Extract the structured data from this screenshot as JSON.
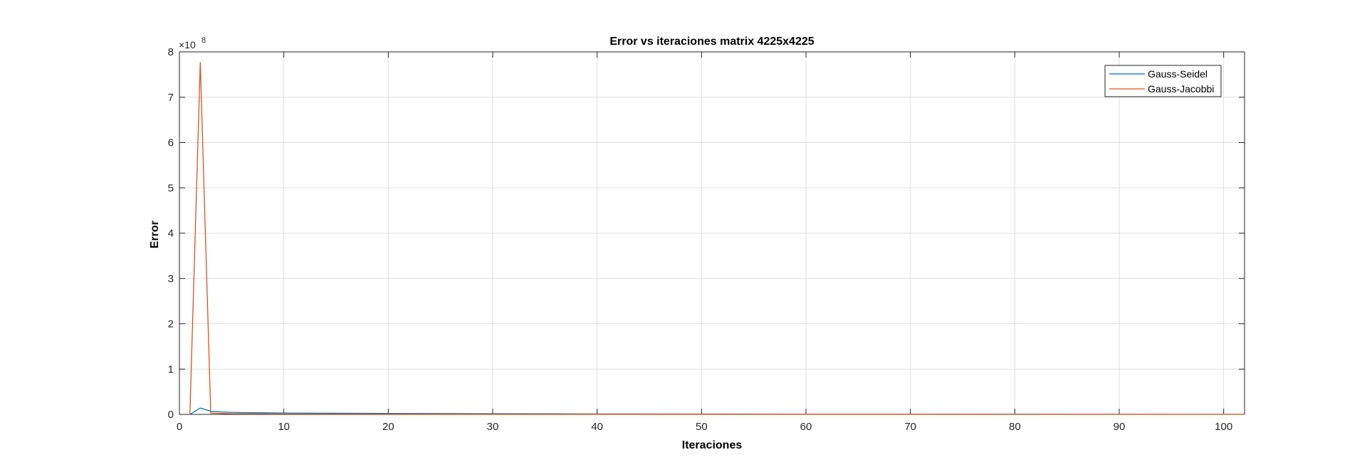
{
  "chart_data": {
    "type": "line",
    "title": "Error vs iteraciones matrix 4225x4225",
    "xlabel": "Iteraciones",
    "ylabel": "Error",
    "y_exponent_label": "×10",
    "y_exponent": "8",
    "xlim": [
      0,
      102
    ],
    "ylim": [
      0,
      8
    ],
    "x_ticks": [
      0,
      10,
      20,
      30,
      40,
      50,
      60,
      70,
      80,
      90,
      100
    ],
    "y_ticks": [
      0,
      1,
      2,
      3,
      4,
      5,
      6,
      7,
      8
    ],
    "grid": true,
    "legend_position": "top-right",
    "series": [
      {
        "name": "Gauss-Seidel",
        "color": "#0072BD",
        "x": [
          1,
          2,
          3,
          4,
          5,
          6,
          8,
          10,
          15,
          20,
          30,
          40,
          50,
          60,
          70,
          80,
          90,
          100,
          102
        ],
        "y": [
          0,
          0.14,
          0.07,
          0.055,
          0.045,
          0.04,
          0.035,
          0.03,
          0.025,
          0.02,
          0.015,
          0.01,
          0.008,
          0.006,
          0.005,
          0.004,
          0.003,
          0.002,
          0.002
        ]
      },
      {
        "name": "Gauss-Jacobbi",
        "color": "#D95319",
        "x": [
          1,
          2,
          3,
          4,
          5,
          10,
          20,
          30,
          40,
          50,
          60,
          70,
          80,
          90,
          100,
          102
        ],
        "y": [
          0,
          7.77,
          0.03,
          0.02,
          0.015,
          0.01,
          0.008,
          0.006,
          0.005,
          0.004,
          0.003,
          0.003,
          0.002,
          0.002,
          0.002,
          0.002
        ]
      }
    ]
  }
}
